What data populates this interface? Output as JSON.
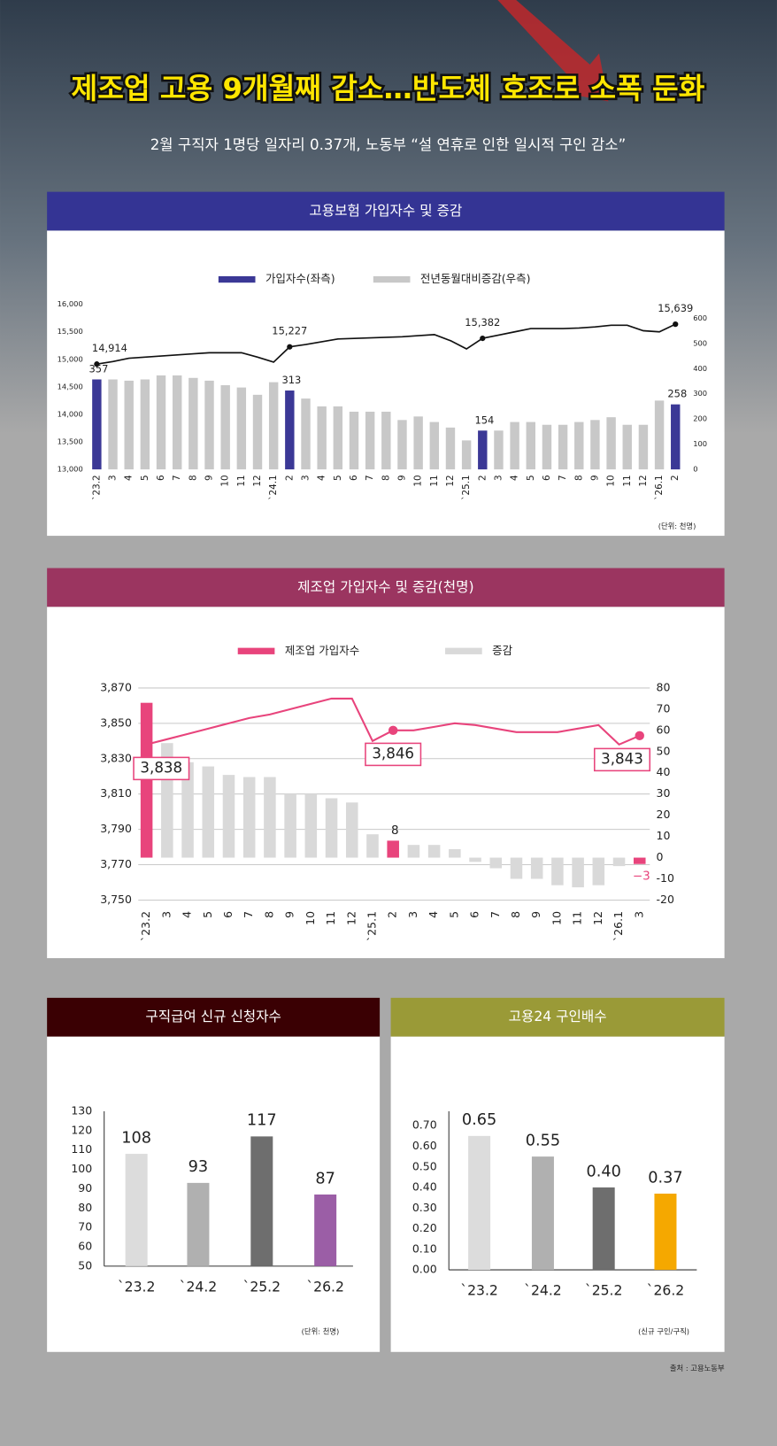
{
  "header": {
    "title": "제조업 고용 9개월째 감소…반도체 호조로 소폭 둔화",
    "subtitle": "2월 구직자 1명당 일자리 0.37개, 노동부 “설 연휴로 인한 일시적 구인 감소”"
  },
  "chart_data": [
    {
      "type": "combo",
      "title": "고용보험 가입자수 및 증감",
      "header_color": "#343494",
      "unit_note": "(단위: 천명)",
      "categories": [
        "`23.2",
        "3",
        "4",
        "5",
        "6",
        "7",
        "8",
        "9",
        "10",
        "11",
        "12",
        "`24.1",
        "2",
        "3",
        "4",
        "5",
        "6",
        "7",
        "8",
        "9",
        "10",
        "11",
        "12",
        "`25.1",
        "2",
        "3",
        "4",
        "5",
        "6",
        "7",
        "8",
        "9",
        "10",
        "11",
        "12",
        "`26.1",
        "2"
      ],
      "ylim": [
        13000,
        16000
      ],
      "yticks": [
        {
          "value": 13000,
          "label": "13,000"
        },
        {
          "value": 13500,
          "label": "13,500"
        },
        {
          "value": 14000,
          "label": "14,000"
        },
        {
          "value": 14500,
          "label": "14,500"
        },
        {
          "value": 15000,
          "label": "15,000"
        },
        {
          "value": 15500,
          "label": "15,500"
        },
        {
          "value": 16000,
          "label": "16,000"
        }
      ],
      "y2lim": [
        0,
        655
      ],
      "y2ticks": [
        0,
        100,
        200,
        300,
        400,
        500,
        600
      ],
      "grid": false,
      "series": [
        {
          "name": "가입자수(좌측)",
          "type": "line",
          "color": "#3b3896",
          "line_color": "#111111",
          "values": [
            14914,
            14960,
            15020,
            15040,
            15060,
            15080,
            15100,
            15120,
            15120,
            15120,
            15040,
            14950,
            15227,
            15270,
            15320,
            15370,
            15380,
            15390,
            15400,
            15410,
            15430,
            15450,
            15340,
            15190,
            15382,
            15440,
            15500,
            15560,
            15560,
            15560,
            15570,
            15590,
            15620,
            15620,
            15520,
            15500,
            15639
          ],
          "value_labels": [
            "14,914",
            null,
            null,
            null,
            null,
            null,
            null,
            null,
            null,
            null,
            null,
            null,
            "15,227",
            null,
            null,
            null,
            null,
            null,
            null,
            null,
            null,
            null,
            null,
            null,
            "15,382",
            null,
            null,
            null,
            null,
            null,
            null,
            null,
            null,
            null,
            null,
            null,
            "15,639"
          ]
        },
        {
          "name": "전년동월대비증감(우측)",
          "type": "bar",
          "axis": "y2",
          "color": "#c8c8c8",
          "colors": [
            "#3b3896",
            "#c8c8c8",
            "#c8c8c8",
            "#c8c8c8",
            "#c8c8c8",
            "#c8c8c8",
            "#c8c8c8",
            "#c8c8c8",
            "#c8c8c8",
            "#c8c8c8",
            "#c8c8c8",
            "#c8c8c8",
            "#3b3896",
            "#c8c8c8",
            "#c8c8c8",
            "#c8c8c8",
            "#c8c8c8",
            "#c8c8c8",
            "#c8c8c8",
            "#c8c8c8",
            "#c8c8c8",
            "#c8c8c8",
            "#c8c8c8",
            "#c8c8c8",
            "#3b3896",
            "#c8c8c8",
            "#c8c8c8",
            "#c8c8c8",
            "#c8c8c8",
            "#c8c8c8",
            "#c8c8c8",
            "#c8c8c8",
            "#c8c8c8",
            "#c8c8c8",
            "#c8c8c8",
            "#c8c8c8",
            "#3b3896"
          ],
          "values": [
            357,
            357,
            352,
            357,
            373,
            373,
            363,
            352,
            334,
            325,
            296,
            346,
            313,
            281,
            250,
            250,
            229,
            229,
            229,
            196,
            210,
            188,
            166,
            115,
            154,
            154,
            188,
            188,
            177,
            177,
            188,
            196,
            207,
            177,
            177,
            273,
            258
          ],
          "value_labels": [
            "357",
            null,
            null,
            null,
            null,
            null,
            null,
            null,
            null,
            null,
            null,
            null,
            "313",
            null,
            null,
            null,
            null,
            null,
            null,
            null,
            null,
            null,
            null,
            null,
            "154",
            null,
            null,
            null,
            null,
            null,
            null,
            null,
            null,
            null,
            null,
            null,
            "258"
          ]
        }
      ]
    },
    {
      "type": "combo",
      "title": "제조업 가입자수 및 증감(천명)",
      "header_color": "#9b3560",
      "categories": [
        "`23.2",
        "3",
        "4",
        "5",
        "6",
        "7",
        "8",
        "9",
        "10",
        "11",
        "12",
        "`25.1",
        "2",
        "3",
        "4",
        "5",
        "6",
        "7",
        "8",
        "9",
        "10",
        "11",
        "12",
        "`26.1",
        "3"
      ],
      "ylim": [
        3750,
        3870
      ],
      "yticks": [
        {
          "value": 3750,
          "label": "3,750"
        },
        {
          "value": 3770,
          "label": "3,770"
        },
        {
          "value": 3790,
          "label": "3,790"
        },
        {
          "value": 3810,
          "label": "3,810"
        },
        {
          "value": 3830,
          "label": "3,830"
        },
        {
          "value": 3850,
          "label": "3,850"
        },
        {
          "value": 3870,
          "label": "3,870"
        }
      ],
      "y2lim": [
        -20,
        80
      ],
      "y2ticks": [
        -20,
        -10,
        0,
        10,
        20,
        30,
        40,
        50,
        60,
        70,
        80
      ],
      "grid": true,
      "series": [
        {
          "name": "제조업 가입자수",
          "type": "line",
          "color": "#e8447c",
          "line_color": "#e8447c",
          "values": [
            3838,
            3841,
            3844,
            3847,
            3850,
            3853,
            3855,
            3858,
            3861,
            3864,
            3864,
            3840,
            3846,
            3846,
            3848,
            3850,
            3849,
            3847,
            3845,
            3845,
            3845,
            3847,
            3849,
            3838,
            3843
          ],
          "value_labels": [
            "3,838",
            null,
            null,
            null,
            null,
            null,
            null,
            null,
            null,
            null,
            null,
            null,
            "3,846",
            null,
            null,
            null,
            null,
            null,
            null,
            null,
            null,
            null,
            null,
            null,
            "3,843"
          ]
        },
        {
          "name": "증감",
          "type": "bar",
          "axis": "y2",
          "color": "#d9d9d9",
          "colors": [
            "#e8447c",
            "#d9d9d9",
            "#d9d9d9",
            "#d9d9d9",
            "#d9d9d9",
            "#d9d9d9",
            "#d9d9d9",
            "#d9d9d9",
            "#d9d9d9",
            "#d9d9d9",
            "#d9d9d9",
            "#d9d9d9",
            "#e8447c",
            "#d9d9d9",
            "#d9d9d9",
            "#d9d9d9",
            "#d9d9d9",
            "#d9d9d9",
            "#d9d9d9",
            "#d9d9d9",
            "#d9d9d9",
            "#d9d9d9",
            "#d9d9d9",
            "#d9d9d9",
            "#e8447c"
          ],
          "values": [
            73,
            54,
            45,
            43,
            39,
            38,
            38,
            30,
            30,
            28,
            26,
            11,
            8,
            6,
            6,
            4,
            -2,
            -5,
            -10,
            -10,
            -13,
            -14,
            -13,
            -4,
            -3
          ],
          "value_labels": [
            null,
            null,
            null,
            null,
            null,
            null,
            null,
            null,
            null,
            null,
            null,
            null,
            "8",
            null,
            null,
            null,
            null,
            null,
            null,
            null,
            null,
            null,
            null,
            null,
            "−3"
          ]
        }
      ]
    },
    {
      "type": "bar",
      "title": "구직급여 신규 신청자수",
      "header_color": "#3a0003",
      "unit_note": "(단위: 천명)",
      "categories": [
        "`23.2",
        "`24.2",
        "`25.2",
        "`26.2"
      ],
      "values": [
        108,
        93,
        117,
        87
      ],
      "colors": [
        "#dcdcdc",
        "#b0b0b0",
        "#6e6e6e",
        "#9b5ea6"
      ],
      "ylim": [
        50,
        130
      ],
      "yticks": [
        50,
        60,
        70,
        80,
        90,
        100,
        110,
        120,
        130
      ]
    },
    {
      "type": "bar",
      "title": "고용24 구인배수",
      "header_color": "#9a9a37",
      "unit_note": "(신규 구인/구직)",
      "categories": [
        "`23.2",
        "`24.2",
        "`25.2",
        "`26.2"
      ],
      "values": [
        0.65,
        0.55,
        0.4,
        0.37
      ],
      "value_labels": [
        "0.65",
        "0.55",
        "0.40",
        "0.37"
      ],
      "colors": [
        "#dcdcdc",
        "#b0b0b0",
        "#6e6e6e",
        "#f5a800"
      ],
      "ylim": [
        0,
        0.77
      ],
      "yticks": [
        {
          "value": 0,
          "label": "0.00"
        },
        {
          "value": 0.1,
          "label": "0.10"
        },
        {
          "value": 0.2,
          "label": "0.20"
        },
        {
          "value": 0.3,
          "label": "0.30"
        },
        {
          "value": 0.4,
          "label": "0.40"
        },
        {
          "value": 0.5,
          "label": "0.50"
        },
        {
          "value": 0.6,
          "label": "0.60"
        },
        {
          "value": 0.7,
          "label": "0.70"
        }
      ]
    }
  ],
  "source": "출처 : 고용노동부"
}
